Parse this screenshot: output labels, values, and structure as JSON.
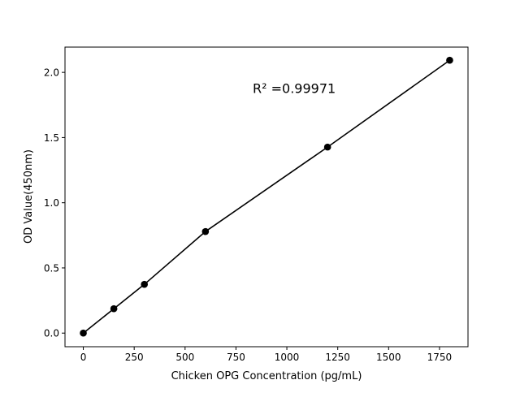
{
  "chart_data": {
    "type": "scatter",
    "title": "",
    "xlabel": "Chicken OPG Concentration (pg/mL)",
    "ylabel": "OD Value(450nm)",
    "xlim": [
      -90,
      1890
    ],
    "ylim": [
      -0.1045,
      2.194
    ],
    "xticks": [
      0,
      250,
      500,
      750,
      1000,
      1250,
      1500,
      1750
    ],
    "xtick_labels": [
      "0",
      "250",
      "500",
      "750",
      "1000",
      "1250",
      "1500",
      "1750"
    ],
    "yticks": [
      0.0,
      0.5,
      1.0,
      1.5,
      2.0
    ],
    "ytick_labels": [
      "0.0",
      "0.5",
      "1.0",
      "1.5",
      "2.0"
    ],
    "grid": false,
    "series": [
      {
        "x": [
          0,
          150,
          300,
          600,
          1200,
          1800
        ],
        "y": [
          0.0,
          0.187,
          0.374,
          0.779,
          1.427,
          2.093
        ],
        "color": "#000000",
        "marker": "circle",
        "fit_line": true
      }
    ],
    "annotations": [
      {
        "text": "R² =0.99971",
        "x": 900,
        "y": 1.88
      }
    ]
  }
}
